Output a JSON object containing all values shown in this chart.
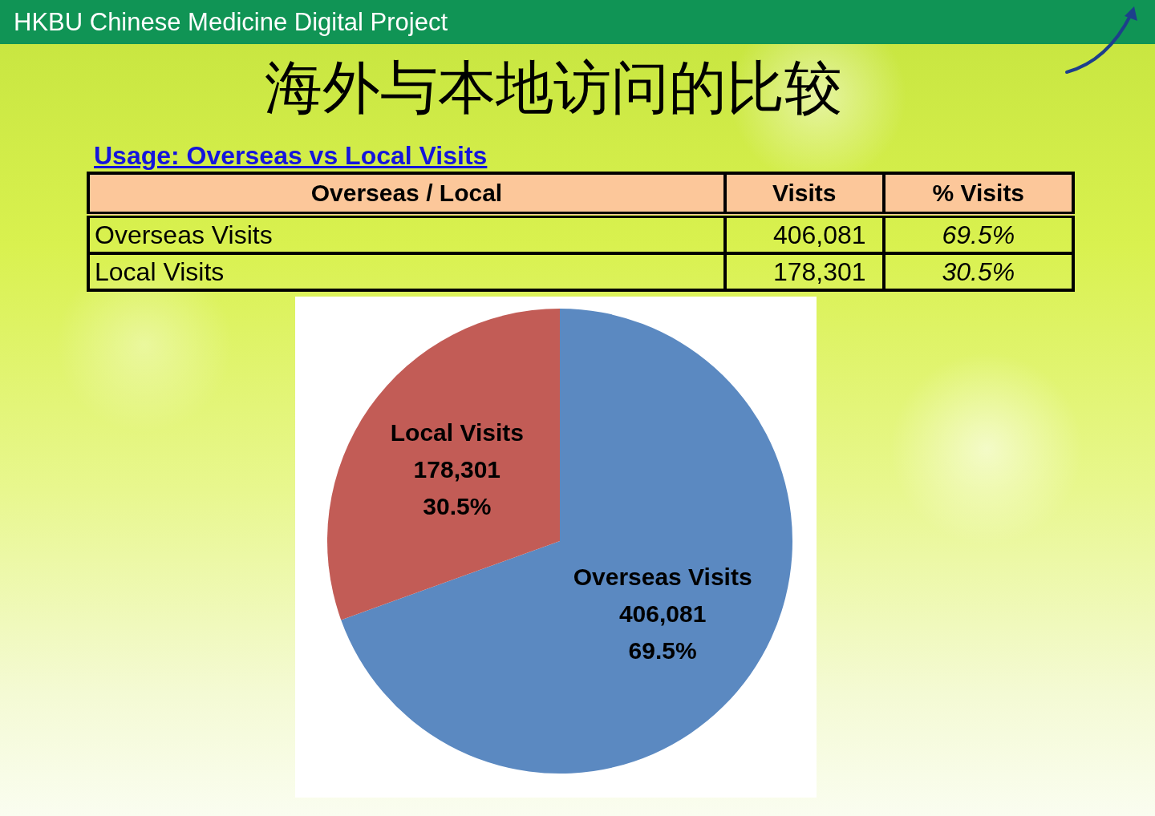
{
  "chart_data": {
    "type": "pie",
    "title": "海外与本地访问的比较",
    "subtitle": "Usage: Overseas vs Local Visits",
    "categories": [
      "Overseas Visits",
      "Local Visits"
    ],
    "values": [
      406081,
      178301
    ],
    "colors": [
      "#5b89c1",
      "#c25c56"
    ],
    "value_labels": [
      "406,081",
      "178,301"
    ],
    "annotations": [
      "HKBU Chinese Medicine Digital Project",
      "Overseas / Local",
      "Visits",
      "% Visits",
      "69.5%",
      "30.5%"
    ]
  }
}
